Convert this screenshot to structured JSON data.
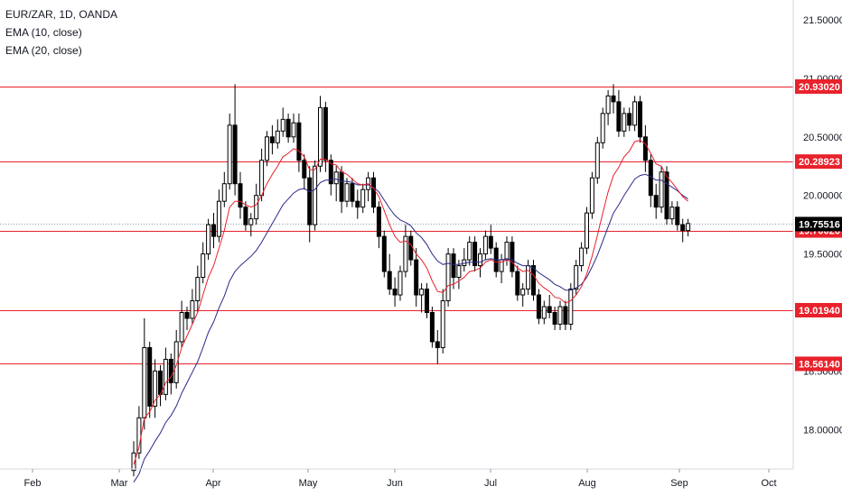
{
  "legend": {
    "symbol": "EUR/ZAR, 1D, OANDA",
    "ema10": "EMA (10, close)",
    "ema20": "EMA (20, close)"
  },
  "colors": {
    "bg": "#ffffff",
    "candle": "#000000",
    "hline": "#e8212b",
    "ema10": "#e8212b",
    "ema20": "#2a2a8a",
    "axis_text": "#131722",
    "price_tag_current": "#000000",
    "price_tag_level": "#e8212b"
  },
  "chart_data": {
    "type": "candlestick",
    "symbol": "EUR/ZAR",
    "timeframe": "1D",
    "source": "OANDA",
    "x_ticks": [
      "Feb",
      "Mar",
      "Apr",
      "May",
      "Jun",
      "Jul",
      "Aug",
      "Sep",
      "Oct"
    ],
    "y_ticks": [
      "18.00000",
      "18.50000",
      "19.00000",
      "19.50000",
      "20.00000",
      "20.50000",
      "21.00000",
      "21.50000"
    ],
    "ylim": [
      17.65,
      21.65
    ],
    "current_price": "19.75516",
    "horizontal_levels": [
      "20.93020",
      "20.28923",
      "19.70026",
      "19.01940",
      "18.56140"
    ],
    "grid": false,
    "legend_position": "top-left",
    "candles_approx": [
      [
        17.65,
        17.9,
        17.6,
        17.8
      ],
      [
        17.8,
        18.2,
        17.75,
        18.1
      ],
      [
        18.1,
        18.95,
        18.0,
        18.7
      ],
      [
        18.7,
        18.75,
        18.1,
        18.2
      ],
      [
        18.2,
        18.6,
        18.1,
        18.5
      ],
      [
        18.5,
        18.55,
        18.2,
        18.3
      ],
      [
        18.3,
        18.7,
        18.25,
        18.6
      ],
      [
        18.6,
        18.65,
        18.3,
        18.4
      ],
      [
        18.4,
        18.85,
        18.35,
        18.75
      ],
      [
        18.75,
        19.1,
        18.7,
        19.0
      ],
      [
        19.0,
        19.05,
        18.85,
        18.95
      ],
      [
        18.95,
        19.2,
        18.9,
        19.1
      ],
      [
        19.1,
        19.4,
        19.0,
        19.3
      ],
      [
        19.3,
        19.6,
        19.25,
        19.5
      ],
      [
        19.5,
        19.8,
        19.45,
        19.75
      ],
      [
        19.75,
        19.85,
        19.55,
        19.65
      ],
      [
        19.65,
        20.05,
        19.6,
        19.95
      ],
      [
        19.95,
        20.2,
        19.9,
        20.1
      ],
      [
        20.1,
        20.7,
        20.05,
        20.6
      ],
      [
        20.6,
        20.95,
        20.0,
        20.1
      ],
      [
        20.1,
        20.2,
        19.8,
        19.9
      ],
      [
        19.9,
        19.95,
        19.7,
        19.75
      ],
      [
        19.75,
        19.85,
        19.65,
        19.8
      ],
      [
        19.8,
        20.1,
        19.75,
        20.0
      ],
      [
        20.0,
        20.4,
        19.95,
        20.3
      ],
      [
        20.3,
        20.55,
        20.25,
        20.5
      ],
      [
        20.5,
        20.6,
        20.35,
        20.45
      ],
      [
        20.45,
        20.65,
        20.4,
        20.55
      ],
      [
        20.55,
        20.75,
        20.5,
        20.65
      ],
      [
        20.65,
        20.7,
        20.45,
        20.5
      ],
      [
        20.5,
        20.7,
        20.45,
        20.62
      ],
      [
        20.62,
        20.7,
        20.2,
        20.3
      ],
      [
        20.3,
        20.35,
        20.05,
        20.15
      ],
      [
        20.15,
        20.25,
        19.6,
        19.75
      ],
      [
        19.75,
        20.3,
        19.7,
        20.25
      ],
      [
        20.25,
        20.85,
        20.2,
        20.75
      ],
      [
        20.75,
        20.8,
        20.2,
        20.3
      ],
      [
        20.3,
        20.35,
        20.0,
        20.1
      ],
      [
        20.1,
        20.25,
        19.95,
        20.2
      ],
      [
        20.2,
        20.25,
        19.85,
        19.95
      ],
      [
        19.95,
        20.15,
        19.9,
        20.1
      ],
      [
        20.1,
        20.15,
        19.9,
        19.95
      ],
      [
        19.95,
        20.05,
        19.8,
        19.9
      ],
      [
        19.9,
        20.1,
        19.85,
        20.05
      ],
      [
        20.05,
        20.2,
        19.95,
        20.15
      ],
      [
        20.15,
        20.2,
        19.85,
        19.9
      ],
      [
        19.9,
        19.95,
        19.55,
        19.65
      ],
      [
        19.65,
        19.7,
        19.3,
        19.35
      ],
      [
        19.35,
        19.5,
        19.15,
        19.2
      ],
      [
        19.2,
        19.3,
        19.05,
        19.15
      ],
      [
        19.15,
        19.4,
        19.1,
        19.35
      ],
      [
        19.35,
        19.75,
        19.3,
        19.65
      ],
      [
        19.65,
        19.7,
        19.4,
        19.45
      ],
      [
        19.45,
        19.55,
        19.05,
        19.15
      ],
      [
        19.15,
        19.25,
        19.0,
        19.2
      ],
      [
        19.2,
        19.25,
        18.95,
        19.0
      ],
      [
        19.0,
        19.05,
        18.7,
        18.75
      ],
      [
        18.75,
        18.85,
        18.56,
        18.7
      ],
      [
        18.7,
        19.2,
        18.65,
        19.1
      ],
      [
        19.1,
        19.55,
        19.05,
        19.5
      ],
      [
        19.5,
        19.55,
        19.2,
        19.3
      ],
      [
        19.3,
        19.45,
        19.2,
        19.4
      ],
      [
        19.4,
        19.55,
        19.35,
        19.45
      ],
      [
        19.45,
        19.65,
        19.4,
        19.6
      ],
      [
        19.6,
        19.65,
        19.35,
        19.4
      ],
      [
        19.4,
        19.55,
        19.3,
        19.5
      ],
      [
        19.5,
        19.7,
        19.45,
        19.65
      ],
      [
        19.65,
        19.75,
        19.5,
        19.55
      ],
      [
        19.55,
        19.6,
        19.3,
        19.35
      ],
      [
        19.35,
        19.5,
        19.25,
        19.45
      ],
      [
        19.45,
        19.65,
        19.4,
        19.6
      ],
      [
        19.6,
        19.65,
        19.3,
        19.35
      ],
      [
        19.35,
        19.4,
        19.1,
        19.15
      ],
      [
        19.15,
        19.25,
        19.05,
        19.2
      ],
      [
        19.2,
        19.45,
        19.15,
        19.4
      ],
      [
        19.4,
        19.45,
        19.1,
        19.15
      ],
      [
        19.15,
        19.2,
        18.9,
        18.95
      ],
      [
        18.95,
        19.1,
        18.9,
        19.05
      ],
      [
        19.05,
        19.15,
        18.95,
        19.0
      ],
      [
        19.0,
        19.05,
        18.85,
        18.9
      ],
      [
        18.9,
        19.1,
        18.85,
        19.05
      ],
      [
        19.05,
        19.1,
        18.85,
        18.9
      ],
      [
        18.9,
        19.25,
        18.85,
        19.2
      ],
      [
        19.2,
        19.45,
        19.15,
        19.4
      ],
      [
        19.4,
        19.6,
        19.35,
        19.55
      ],
      [
        19.55,
        19.9,
        19.5,
        19.85
      ],
      [
        19.85,
        20.2,
        19.8,
        20.15
      ],
      [
        20.15,
        20.5,
        20.1,
        20.45
      ],
      [
        20.45,
        20.75,
        20.4,
        20.7
      ],
      [
        20.7,
        20.9,
        20.6,
        20.85
      ],
      [
        20.85,
        20.95,
        20.7,
        20.8
      ],
      [
        20.8,
        20.9,
        20.5,
        20.55
      ],
      [
        20.55,
        20.75,
        20.5,
        20.7
      ],
      [
        20.7,
        20.75,
        20.55,
        20.6
      ],
      [
        20.6,
        20.85,
        20.55,
        20.8
      ],
      [
        20.8,
        20.85,
        20.45,
        20.5
      ],
      [
        20.5,
        20.6,
        20.2,
        20.3
      ],
      [
        20.3,
        20.35,
        19.9,
        20.0
      ],
      [
        20.0,
        20.1,
        19.8,
        19.9
      ],
      [
        19.9,
        20.25,
        19.85,
        20.2
      ],
      [
        20.2,
        20.25,
        19.75,
        19.8
      ],
      [
        19.8,
        19.95,
        19.75,
        19.9
      ],
      [
        19.9,
        19.95,
        19.7,
        19.75
      ],
      [
        19.75,
        19.8,
        19.6,
        19.7
      ],
      [
        19.7,
        19.8,
        19.65,
        19.76
      ]
    ],
    "ema10_approx": [
      17.7,
      17.85,
      18.1,
      18.15,
      18.25,
      18.3,
      18.4,
      18.45,
      18.55,
      18.7,
      18.8,
      18.9,
      19.0,
      19.15,
      19.3,
      19.4,
      19.55,
      19.7,
      19.9,
      19.95,
      19.95,
      19.92,
      19.9,
      19.92,
      20.0,
      20.1,
      20.18,
      20.25,
      20.33,
      20.36,
      20.4,
      20.38,
      20.33,
      20.22,
      20.22,
      20.31,
      20.31,
      20.27,
      20.26,
      20.2,
      20.18,
      20.14,
      20.1,
      20.09,
      20.1,
      20.06,
      19.99,
      19.87,
      19.75,
      19.65,
      19.6,
      19.61,
      19.58,
      19.5,
      19.45,
      19.38,
      19.27,
      19.18,
      19.17,
      19.23,
      19.24,
      19.27,
      19.3,
      19.35,
      19.36,
      19.38,
      19.43,
      19.45,
      19.43,
      19.43,
      19.45,
      19.43,
      19.38,
      19.35,
      19.36,
      19.32,
      19.25,
      19.21,
      19.18,
      19.13,
      19.12,
      19.08,
      19.1,
      19.15,
      19.22,
      19.33,
      19.48,
      19.66,
      19.85,
      20.03,
      20.17,
      20.24,
      20.33,
      20.38,
      20.46,
      20.47,
      20.44,
      20.36,
      20.27,
      20.25,
      20.16,
      20.11,
      20.05,
      19.99,
      19.95
    ],
    "ema20_approx": [
      17.55,
      17.62,
      17.75,
      17.82,
      17.9,
      17.97,
      18.06,
      18.12,
      18.2,
      18.31,
      18.4,
      18.49,
      18.58,
      18.7,
      18.83,
      18.92,
      19.04,
      19.14,
      19.27,
      19.35,
      19.4,
      19.44,
      19.48,
      19.53,
      19.6,
      19.68,
      19.76,
      19.84,
      19.92,
      19.97,
      20.02,
      20.05,
      20.06,
      20.03,
      20.05,
      20.11,
      20.13,
      20.13,
      20.14,
      20.12,
      20.12,
      20.11,
      20.09,
      20.09,
      20.09,
      20.07,
      20.03,
      19.96,
      19.89,
      19.83,
      19.79,
      19.77,
      19.74,
      19.68,
      19.64,
      19.58,
      19.5,
      19.44,
      19.41,
      19.42,
      19.41,
      19.41,
      19.42,
      19.43,
      19.43,
      19.43,
      19.45,
      19.46,
      19.45,
      19.45,
      19.46,
      19.45,
      19.42,
      19.4,
      19.4,
      19.38,
      19.34,
      19.31,
      19.28,
      19.24,
      19.22,
      19.19,
      19.19,
      19.21,
      19.24,
      19.3,
      19.39,
      19.49,
      19.61,
      19.73,
      19.85,
      19.92,
      20.0,
      20.07,
      20.14,
      20.17,
      20.18,
      20.16,
      20.13,
      20.13,
      20.1,
      20.07,
      20.04,
      20.0,
      19.97
    ]
  }
}
